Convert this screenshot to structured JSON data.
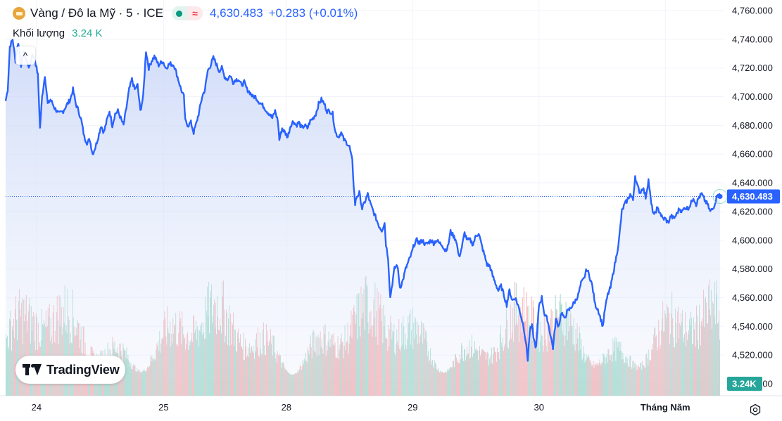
{
  "header": {
    "symbol_title": "Vàng / Đô la Mỹ · 5 · ICE",
    "price": "4,630.483",
    "change": "+0.283 (+0.01%)",
    "status_icon": "market-open-dot",
    "approx_icon": "≈"
  },
  "volume_legend": {
    "label": "Khối lượng",
    "value": "3.24 K"
  },
  "branding": {
    "logo_text": "TradingView"
  },
  "price_tag": "4,630.483",
  "volume_tag": "3.24K",
  "collapse_glyph": "^",
  "colors": {
    "line": "#2962ff",
    "area_top": "#c9d6f7",
    "vol_up": "#8ed1c0",
    "vol_down": "#f3a3a5",
    "grid": "#f0f3fa",
    "price_tag_bg": "#2962ff",
    "volume_tag_bg": "#26a69a"
  },
  "chart_data": {
    "type": "area",
    "title": "Vàng / Đô la Mỹ · 5 · ICE",
    "y_ticks": [
      4760,
      4740,
      4720,
      4700,
      4680,
      4660,
      4640,
      4620,
      4600,
      4580,
      4560,
      4540,
      4520,
      4500
    ],
    "y_tick_labels": [
      "4,760.000",
      "4,740.000",
      "4,720.000",
      "4,700.000",
      "4,680.000",
      "4,660.000",
      "4,640.000",
      "4,620.000",
      "4,600.000",
      "4,580.000",
      "4,560.000",
      "4,540.000",
      "4,520.000",
      "4,500.000"
    ],
    "ylim": [
      4500,
      4760
    ],
    "x_tick_labels": [
      "24",
      "25",
      "28",
      "29",
      "30",
      "Tháng Năm"
    ],
    "x_tick_index": [
      44,
      225,
      400,
      580,
      760,
      940
    ],
    "x_count": 1018,
    "last_price": 4630.483,
    "grid": true,
    "series": [
      {
        "values_at_index": [
          [
            0,
            4697
          ],
          [
            3,
            4705
          ],
          [
            6,
            4735
          ],
          [
            10,
            4740
          ],
          [
            14,
            4725
          ],
          [
            18,
            4738
          ],
          [
            22,
            4722
          ],
          [
            26,
            4732
          ],
          [
            30,
            4725
          ],
          [
            34,
            4720
          ],
          [
            38,
            4730
          ],
          [
            42,
            4725
          ],
          [
            46,
            4715
          ],
          [
            49,
            4678
          ],
          [
            52,
            4700
          ],
          [
            56,
            4715
          ],
          [
            60,
            4695
          ],
          [
            64,
            4698
          ],
          [
            70,
            4692
          ],
          [
            76,
            4688
          ],
          [
            82,
            4690
          ],
          [
            88,
            4695
          ],
          [
            92,
            4698
          ],
          [
            96,
            4705
          ],
          [
            100,
            4695
          ],
          [
            104,
            4690
          ],
          [
            108,
            4683
          ],
          [
            112,
            4672
          ],
          [
            116,
            4668
          ],
          [
            120,
            4670
          ],
          [
            124,
            4660
          ],
          [
            128,
            4665
          ],
          [
            132,
            4672
          ],
          [
            136,
            4680
          ],
          [
            140,
            4675
          ],
          [
            144,
            4683
          ],
          [
            148,
            4690
          ],
          [
            152,
            4680
          ],
          [
            156,
            4688
          ],
          [
            160,
            4690
          ],
          [
            164,
            4685
          ],
          [
            168,
            4680
          ],
          [
            172,
            4692
          ],
          [
            176,
            4705
          ],
          [
            180,
            4712
          ],
          [
            184,
            4705
          ],
          [
            188,
            4708
          ],
          [
            192,
            4690
          ],
          [
            196,
            4700
          ],
          [
            200,
            4732
          ],
          [
            204,
            4720
          ],
          [
            208,
            4725
          ],
          [
            212,
            4728
          ],
          [
            218,
            4722
          ],
          [
            224,
            4725
          ],
          [
            228,
            4720
          ],
          [
            234,
            4723
          ],
          [
            240,
            4722
          ],
          [
            246,
            4712
          ],
          [
            250,
            4705
          ],
          [
            254,
            4700
          ],
          [
            256,
            4683
          ],
          [
            260,
            4680
          ],
          [
            264,
            4682
          ],
          [
            268,
            4675
          ],
          [
            272,
            4682
          ],
          [
            276,
            4690
          ],
          [
            280,
            4700
          ],
          [
            284,
            4705
          ],
          [
            288,
            4718
          ],
          [
            292,
            4722
          ],
          [
            296,
            4727
          ],
          [
            300,
            4723
          ],
          [
            304,
            4718
          ],
          [
            308,
            4720
          ],
          [
            312,
            4714
          ],
          [
            316,
            4712
          ],
          [
            320,
            4715
          ],
          [
            324,
            4710
          ],
          [
            328,
            4712
          ],
          [
            332,
            4712
          ],
          [
            336,
            4708
          ],
          [
            340,
            4710
          ],
          [
            344,
            4705
          ],
          [
            348,
            4703
          ],
          [
            352,
            4700
          ],
          [
            356,
            4700
          ],
          [
            360,
            4697
          ],
          [
            364,
            4695
          ],
          [
            368,
            4693
          ],
          [
            372,
            4690
          ],
          [
            376,
            4688
          ],
          [
            380,
            4685
          ],
          [
            384,
            4690
          ],
          [
            388,
            4683
          ],
          [
            390,
            4670
          ],
          [
            394,
            4678
          ],
          [
            398,
            4675
          ],
          [
            402,
            4672
          ],
          [
            406,
            4680
          ],
          [
            410,
            4683
          ],
          [
            414,
            4680
          ],
          [
            418,
            4682
          ],
          [
            422,
            4678
          ],
          [
            426,
            4680
          ],
          [
            430,
            4678
          ],
          [
            434,
            4683
          ],
          [
            438,
            4685
          ],
          [
            442,
            4688
          ],
          [
            446,
            4695
          ],
          [
            450,
            4698
          ],
          [
            454,
            4695
          ],
          [
            458,
            4690
          ],
          [
            462,
            4690
          ],
          [
            466,
            4688
          ],
          [
            470,
            4675
          ],
          [
            474,
            4672
          ],
          [
            478,
            4675
          ],
          [
            482,
            4670
          ],
          [
            486,
            4668
          ],
          [
            490,
            4665
          ],
          [
            494,
            4655
          ],
          [
            496,
            4638
          ],
          [
            498,
            4625
          ],
          [
            500,
            4630
          ],
          [
            504,
            4633
          ],
          [
            508,
            4622
          ],
          [
            512,
            4627
          ],
          [
            516,
            4632
          ],
          [
            520,
            4625
          ],
          [
            524,
            4620
          ],
          [
            528,
            4615
          ],
          [
            532,
            4610
          ],
          [
            536,
            4607
          ],
          [
            540,
            4612
          ],
          [
            542,
            4597
          ],
          [
            545,
            4588
          ],
          [
            548,
            4560
          ],
          [
            551,
            4570
          ],
          [
            554,
            4580
          ],
          [
            558,
            4583
          ],
          [
            562,
            4567
          ],
          [
            566,
            4572
          ],
          [
            570,
            4580
          ],
          [
            574,
            4585
          ],
          [
            578,
            4590
          ],
          [
            582,
            4597
          ],
          [
            586,
            4600
          ],
          [
            590,
            4598
          ],
          [
            594,
            4600
          ],
          [
            598,
            4597
          ],
          [
            602,
            4598
          ],
          [
            606,
            4600
          ],
          [
            610,
            4598
          ],
          [
            614,
            4600
          ],
          [
            618,
            4598
          ],
          [
            622,
            4597
          ],
          [
            626,
            4593
          ],
          [
            630,
            4595
          ],
          [
            634,
            4606
          ],
          [
            638,
            4603
          ],
          [
            642,
            4600
          ],
          [
            646,
            4588
          ],
          [
            650,
            4595
          ],
          [
            654,
            4605
          ],
          [
            658,
            4600
          ],
          [
            662,
            4600
          ],
          [
            666,
            4597
          ],
          [
            670,
            4603
          ],
          [
            674,
            4605
          ],
          [
            678,
            4597
          ],
          [
            682,
            4590
          ],
          [
            686,
            4583
          ],
          [
            690,
            4582
          ],
          [
            694,
            4575
          ],
          [
            698,
            4570
          ],
          [
            702,
            4565
          ],
          [
            706,
            4568
          ],
          [
            710,
            4562
          ],
          [
            714,
            4555
          ],
          [
            718,
            4565
          ],
          [
            722,
            4558
          ],
          [
            726,
            4560
          ],
          [
            730,
            4555
          ],
          [
            734,
            4548
          ],
          [
            738,
            4540
          ],
          [
            741,
            4530
          ],
          [
            744,
            4517
          ],
          [
            747,
            4537
          ],
          [
            750,
            4540
          ],
          [
            753,
            4530
          ],
          [
            756,
            4525
          ],
          [
            760,
            4555
          ],
          [
            764,
            4560
          ],
          [
            768,
            4548
          ],
          [
            772,
            4545
          ],
          [
            776,
            4535
          ],
          [
            780,
            4525
          ],
          [
            784,
            4545
          ],
          [
            788,
            4540
          ],
          [
            792,
            4550
          ],
          [
            796,
            4545
          ],
          [
            800,
            4550
          ],
          [
            804,
            4552
          ],
          [
            808,
            4555
          ],
          [
            812,
            4558
          ],
          [
            816,
            4562
          ],
          [
            820,
            4570
          ],
          [
            824,
            4573
          ],
          [
            828,
            4580
          ],
          [
            832,
            4575
          ],
          [
            836,
            4568
          ],
          [
            840,
            4555
          ],
          [
            844,
            4552
          ],
          [
            848,
            4545
          ],
          [
            851,
            4540
          ],
          [
            854,
            4552
          ],
          [
            858,
            4562
          ],
          [
            862,
            4567
          ],
          [
            866,
            4578
          ],
          [
            870,
            4588
          ],
          [
            874,
            4600
          ],
          [
            878,
            4620
          ],
          [
            882,
            4625
          ],
          [
            886,
            4628
          ],
          [
            890,
            4632
          ],
          [
            894,
            4628
          ],
          [
            897,
            4645
          ],
          [
            900,
            4638
          ],
          [
            904,
            4633
          ],
          [
            908,
            4637
          ],
          [
            912,
            4630
          ],
          [
            916,
            4642
          ],
          [
            920,
            4625
          ],
          [
            924,
            4617
          ],
          [
            928,
            4622
          ],
          [
            932,
            4620
          ],
          [
            936,
            4615
          ],
          [
            940,
            4615
          ],
          [
            944,
            4612
          ],
          [
            948,
            4617
          ],
          [
            952,
            4615
          ],
          [
            956,
            4618
          ],
          [
            960,
            4622
          ],
          [
            964,
            4620
          ],
          [
            968,
            4623
          ],
          [
            972,
            4622
          ],
          [
            976,
            4625
          ],
          [
            980,
            4630
          ],
          [
            984,
            4625
          ],
          [
            988,
            4630
          ],
          [
            992,
            4632
          ],
          [
            996,
            4628
          ],
          [
            1000,
            4625
          ],
          [
            1004,
            4620
          ],
          [
            1008,
            4622
          ],
          [
            1012,
            4628
          ],
          [
            1015,
            4633
          ],
          [
            1018,
            4630.5
          ]
        ]
      }
    ]
  }
}
